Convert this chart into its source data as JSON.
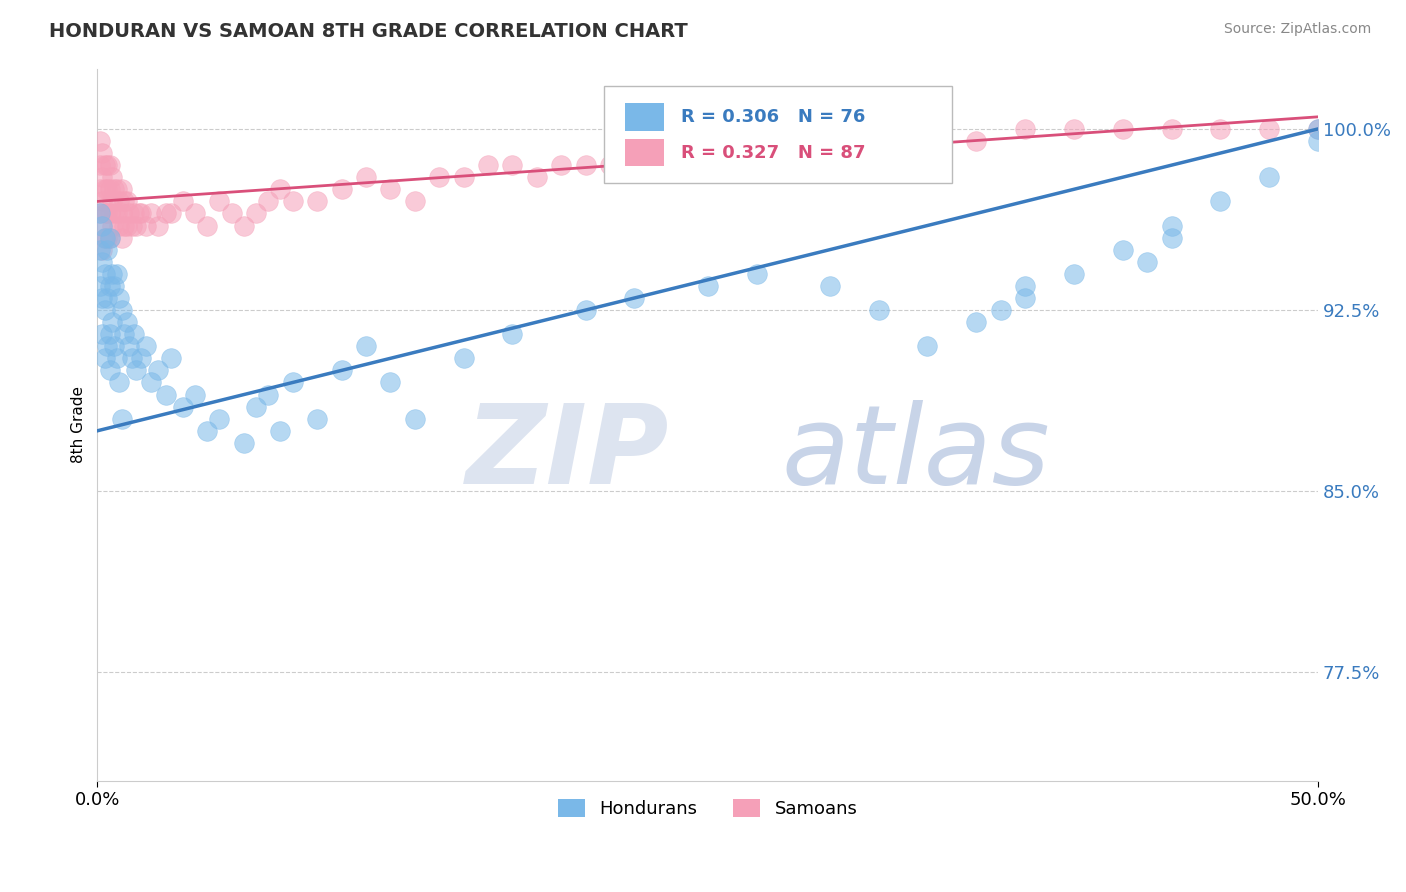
{
  "title": "HONDURAN VS SAMOAN 8TH GRADE CORRELATION CHART",
  "source": "Source: ZipAtlas.com",
  "ylabel": "8th Grade",
  "xlim": [
    0.0,
    50.0
  ],
  "ylim": [
    73.0,
    102.5
  ],
  "xticks": [
    0.0,
    50.0
  ],
  "xticklabels": [
    "0.0%",
    "50.0%"
  ],
  "yticks": [
    77.5,
    85.0,
    92.5,
    100.0
  ],
  "yticklabels": [
    "77.5%",
    "85.0%",
    "92.5%",
    "100.0%"
  ],
  "blue_color": "#7ab8e8",
  "pink_color": "#f5a0b8",
  "blue_line_color": "#3a7bbf",
  "pink_line_color": "#d94f7a",
  "legend_r_blue": "R = 0.306",
  "legend_n_blue": "N = 76",
  "legend_r_pink": "R = 0.327",
  "legend_n_pink": "N = 87",
  "legend_label_blue": "Hondurans",
  "legend_label_pink": "Samoans",
  "blue_line_x0": 0.0,
  "blue_line_y0": 87.5,
  "blue_line_x1": 50.0,
  "blue_line_y1": 100.0,
  "pink_line_x0": 0.0,
  "pink_line_y0": 97.0,
  "pink_line_x1": 50.0,
  "pink_line_y1": 100.5,
  "blue_x": [
    0.1,
    0.1,
    0.1,
    0.2,
    0.2,
    0.2,
    0.2,
    0.3,
    0.3,
    0.3,
    0.3,
    0.4,
    0.4,
    0.4,
    0.5,
    0.5,
    0.5,
    0.5,
    0.6,
    0.6,
    0.7,
    0.7,
    0.8,
    0.8,
    0.9,
    0.9,
    1.0,
    1.0,
    1.1,
    1.2,
    1.3,
    1.4,
    1.5,
    1.6,
    1.8,
    2.0,
    2.2,
    2.5,
    2.8,
    3.0,
    3.5,
    4.0,
    4.5,
    5.0,
    6.0,
    6.5,
    7.0,
    7.5,
    8.0,
    9.0,
    10.0,
    11.0,
    12.0,
    13.0,
    15.0,
    17.0,
    20.0,
    22.0,
    25.0,
    27.0,
    30.0,
    32.0,
    34.0,
    36.0,
    38.0,
    40.0,
    42.0,
    44.0,
    46.0,
    48.0,
    50.0,
    50.0,
    44.0,
    43.0,
    38.0,
    37.0
  ],
  "blue_y": [
    96.5,
    95.0,
    93.5,
    96.0,
    94.5,
    93.0,
    91.5,
    95.5,
    94.0,
    92.5,
    90.5,
    95.0,
    93.0,
    91.0,
    95.5,
    93.5,
    91.5,
    90.0,
    94.0,
    92.0,
    93.5,
    91.0,
    94.0,
    90.5,
    93.0,
    89.5,
    92.5,
    88.0,
    91.5,
    92.0,
    91.0,
    90.5,
    91.5,
    90.0,
    90.5,
    91.0,
    89.5,
    90.0,
    89.0,
    90.5,
    88.5,
    89.0,
    87.5,
    88.0,
    87.0,
    88.5,
    89.0,
    87.5,
    89.5,
    88.0,
    90.0,
    91.0,
    89.5,
    88.0,
    90.5,
    91.5,
    92.5,
    93.0,
    93.5,
    94.0,
    93.5,
    92.5,
    91.0,
    92.0,
    93.5,
    94.0,
    95.0,
    96.0,
    97.0,
    98.0,
    100.0,
    99.5,
    95.5,
    94.5,
    93.0,
    92.5
  ],
  "pink_x": [
    0.1,
    0.1,
    0.1,
    0.1,
    0.2,
    0.2,
    0.2,
    0.2,
    0.2,
    0.3,
    0.3,
    0.3,
    0.3,
    0.4,
    0.4,
    0.4,
    0.4,
    0.5,
    0.5,
    0.5,
    0.5,
    0.6,
    0.6,
    0.6,
    0.7,
    0.7,
    0.8,
    0.8,
    0.9,
    0.9,
    1.0,
    1.0,
    1.0,
    1.1,
    1.1,
    1.2,
    1.2,
    1.3,
    1.4,
    1.5,
    1.6,
    1.7,
    1.8,
    2.0,
    2.2,
    2.5,
    2.8,
    3.0,
    3.5,
    4.0,
    4.5,
    5.0,
    5.5,
    6.0,
    6.5,
    7.0,
    7.5,
    8.0,
    9.0,
    10.0,
    11.0,
    12.0,
    13.0,
    15.0,
    16.0,
    17.0,
    18.0,
    20.0,
    22.0,
    24.0,
    26.0,
    28.0,
    30.0,
    32.0,
    34.0,
    36.0,
    38.0,
    40.0,
    42.0,
    44.0,
    46.0,
    48.0,
    50.0,
    14.0,
    19.0,
    21.0,
    25.0
  ],
  "pink_y": [
    99.5,
    98.5,
    97.5,
    96.5,
    99.0,
    98.0,
    97.0,
    96.0,
    95.0,
    98.5,
    97.5,
    96.5,
    95.5,
    98.5,
    97.5,
    96.5,
    95.5,
    98.5,
    97.5,
    96.5,
    95.5,
    98.0,
    97.0,
    96.0,
    97.5,
    96.5,
    97.5,
    96.5,
    97.0,
    96.0,
    97.5,
    96.5,
    95.5,
    97.0,
    96.0,
    97.0,
    96.0,
    96.5,
    96.0,
    96.5,
    96.0,
    96.5,
    96.5,
    96.0,
    96.5,
    96.0,
    96.5,
    96.5,
    97.0,
    96.5,
    96.0,
    97.0,
    96.5,
    96.0,
    96.5,
    97.0,
    97.5,
    97.0,
    97.0,
    97.5,
    98.0,
    97.5,
    97.0,
    98.0,
    98.5,
    98.5,
    98.0,
    98.5,
    99.0,
    98.5,
    99.0,
    99.5,
    99.5,
    100.0,
    100.0,
    99.5,
    100.0,
    100.0,
    100.0,
    100.0,
    100.0,
    100.0,
    100.0,
    98.0,
    98.5,
    98.5,
    99.0
  ]
}
